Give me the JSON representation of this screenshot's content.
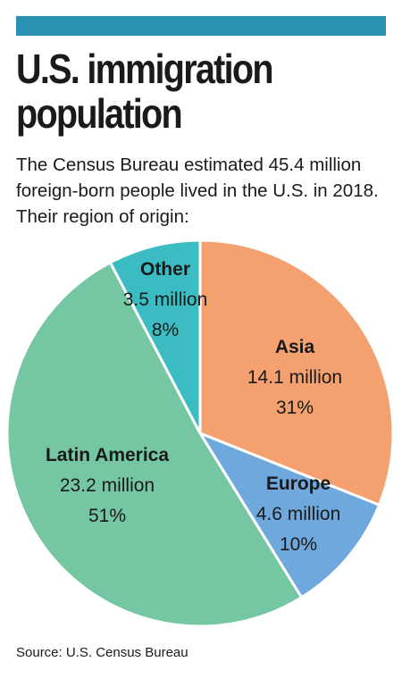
{
  "header": {
    "title_line1": "U.S. immigration",
    "title_line2": "population",
    "subtitle": "The Census Bureau estimated 45.4 million foreign-born people lived in the U.S. in 2018. Their region of origin:"
  },
  "colors": {
    "bar": "#2a93b4",
    "asia": "#f5a06f",
    "europe": "#6fa8dc",
    "latin_america": "#75c6a3",
    "other": "#3bbcc3",
    "border": "#ffffff",
    "text": "#1a1a1a"
  },
  "chart_data": {
    "type": "pie",
    "total_million": 45.4,
    "slices": [
      {
        "name": "Asia",
        "value_label": "14.1 million",
        "value": 14.1,
        "percent": 31,
        "percent_label": "31%",
        "color": "#f5a06f"
      },
      {
        "name": "Europe",
        "value_label": "4.6 million",
        "value": 4.6,
        "percent": 10,
        "percent_label": "10%",
        "color": "#6fa8dc"
      },
      {
        "name": "Latin America",
        "value_label": "23.2 million",
        "value": 23.2,
        "percent": 51,
        "percent_label": "51%",
        "color": "#75c6a3"
      },
      {
        "name": "Other",
        "value_label": "3.5 million",
        "value": 3.5,
        "percent": 8,
        "percent_label": "8%",
        "color": "#3bbcc3"
      }
    ]
  },
  "footer": {
    "source": "Source: U.S. Census Bureau"
  }
}
